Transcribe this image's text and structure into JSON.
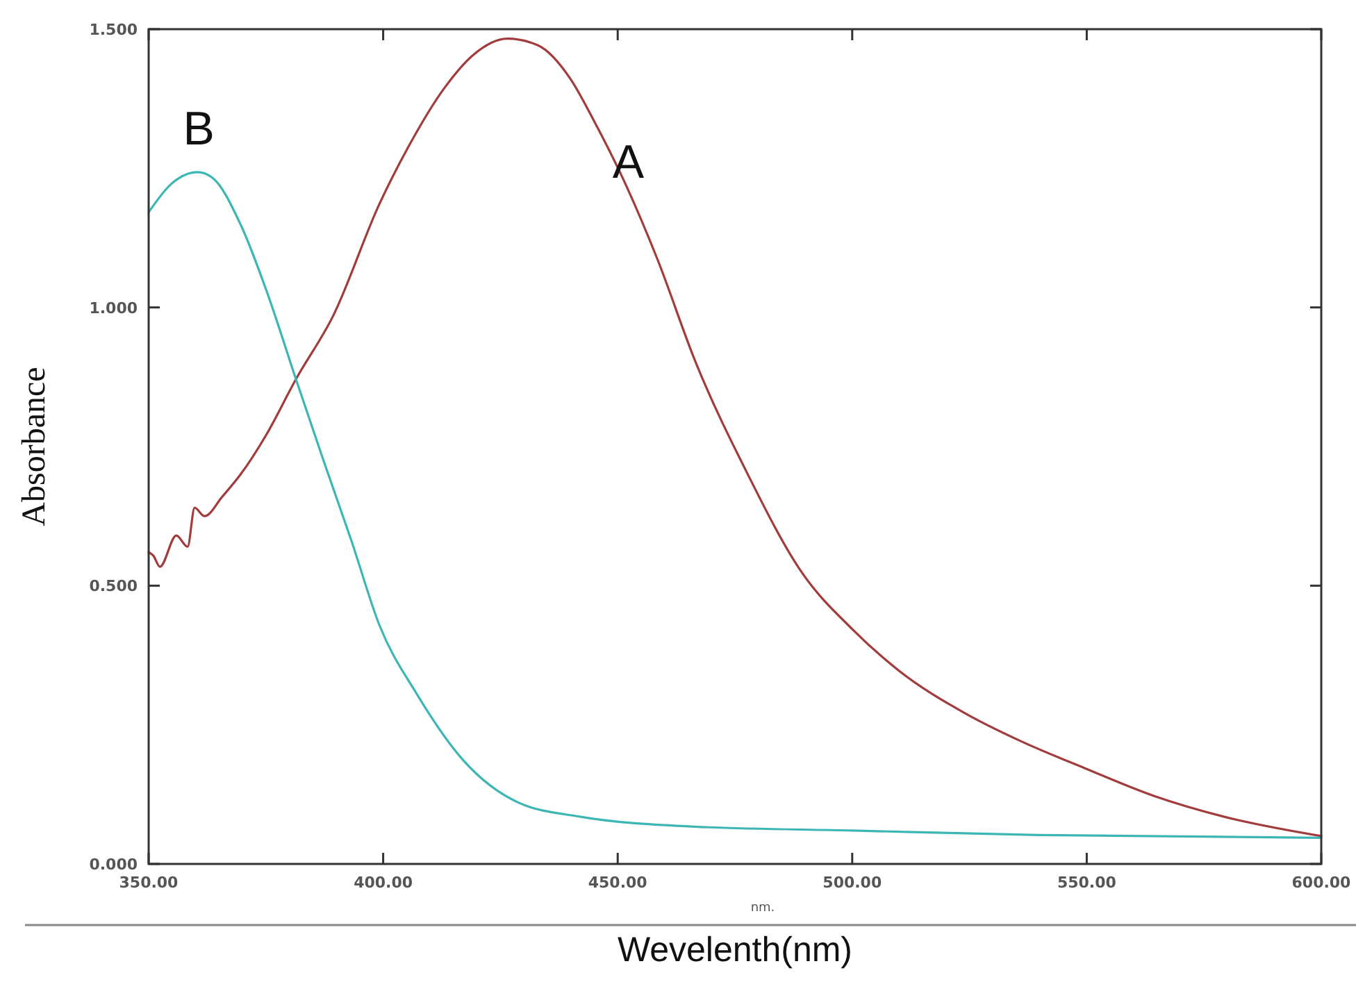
{
  "chart_data": {
    "type": "line",
    "xlabel": "Wevelenth(nm)",
    "ylabel": "Absorbance",
    "xlim": [
      350,
      600
    ],
    "ylim": [
      0,
      1.5
    ],
    "xticks": [
      {
        "value": 350,
        "label": "350.00"
      },
      {
        "value": 400,
        "label": "400.00"
      },
      {
        "value": 450,
        "label": "450.00"
      },
      {
        "value": 500,
        "label": "500.00"
      },
      {
        "value": 550,
        "label": "550.00"
      },
      {
        "value": 600,
        "label": "600.00"
      }
    ],
    "yticks": [
      {
        "value": 0,
        "label": "0.000"
      },
      {
        "value": 0.5,
        "label": "0.500"
      },
      {
        "value": 1,
        "label": "1.000"
      },
      {
        "value": 1.5,
        "label": "1.500"
      }
    ],
    "grid": false,
    "marker": "none",
    "line_style": "solid",
    "series": [
      {
        "name": "A",
        "color": "#a23b3b",
        "x": [
          350,
          351,
          352.4,
          355.9,
          358.3,
          359.8,
          361.9,
          365.7,
          369.6,
          375,
          381.4,
          389.4,
          399.2,
          405.2,
          413.2,
          419.1,
          426.5,
          433,
          439.9,
          444.9,
          451.7,
          458.5,
          466.5,
          477.5,
          489.4,
          500,
          510,
          523.8,
          535.6,
          549.6,
          564.4,
          579.2,
          600
        ],
        "values": [
          0.56,
          0.554,
          0.534,
          0.59,
          0.57,
          0.64,
          0.625,
          0.66,
          0.7,
          0.77,
          0.871,
          0.986,
          1.186,
          1.286,
          1.396,
          1.453,
          1.483,
          1.471,
          1.411,
          1.336,
          1.221,
          1.086,
          0.904,
          0.704,
          0.522,
          0.422,
          0.347,
          0.272,
          0.222,
          0.172,
          0.122,
          0.085,
          0.05
        ]
      },
      {
        "name": "B",
        "color": "#3cb6b4",
        "x": [
          350,
          354.7,
          360.4,
          363.6,
          369.6,
          375.5,
          381.4,
          387.4,
          393.3,
          399.2,
          407.2,
          417,
          428.9,
          441.9,
          466.5,
          500,
          539.8,
          600
        ],
        "values": [
          1.171,
          1.221,
          1.243,
          1.233,
          1.149,
          1.021,
          0.871,
          0.722,
          0.579,
          0.429,
          0.305,
          0.187,
          0.11,
          0.085,
          0.067,
          0.06,
          0.052,
          0.047
        ]
      }
    ],
    "annotations": [
      "nm."
    ]
  }
}
